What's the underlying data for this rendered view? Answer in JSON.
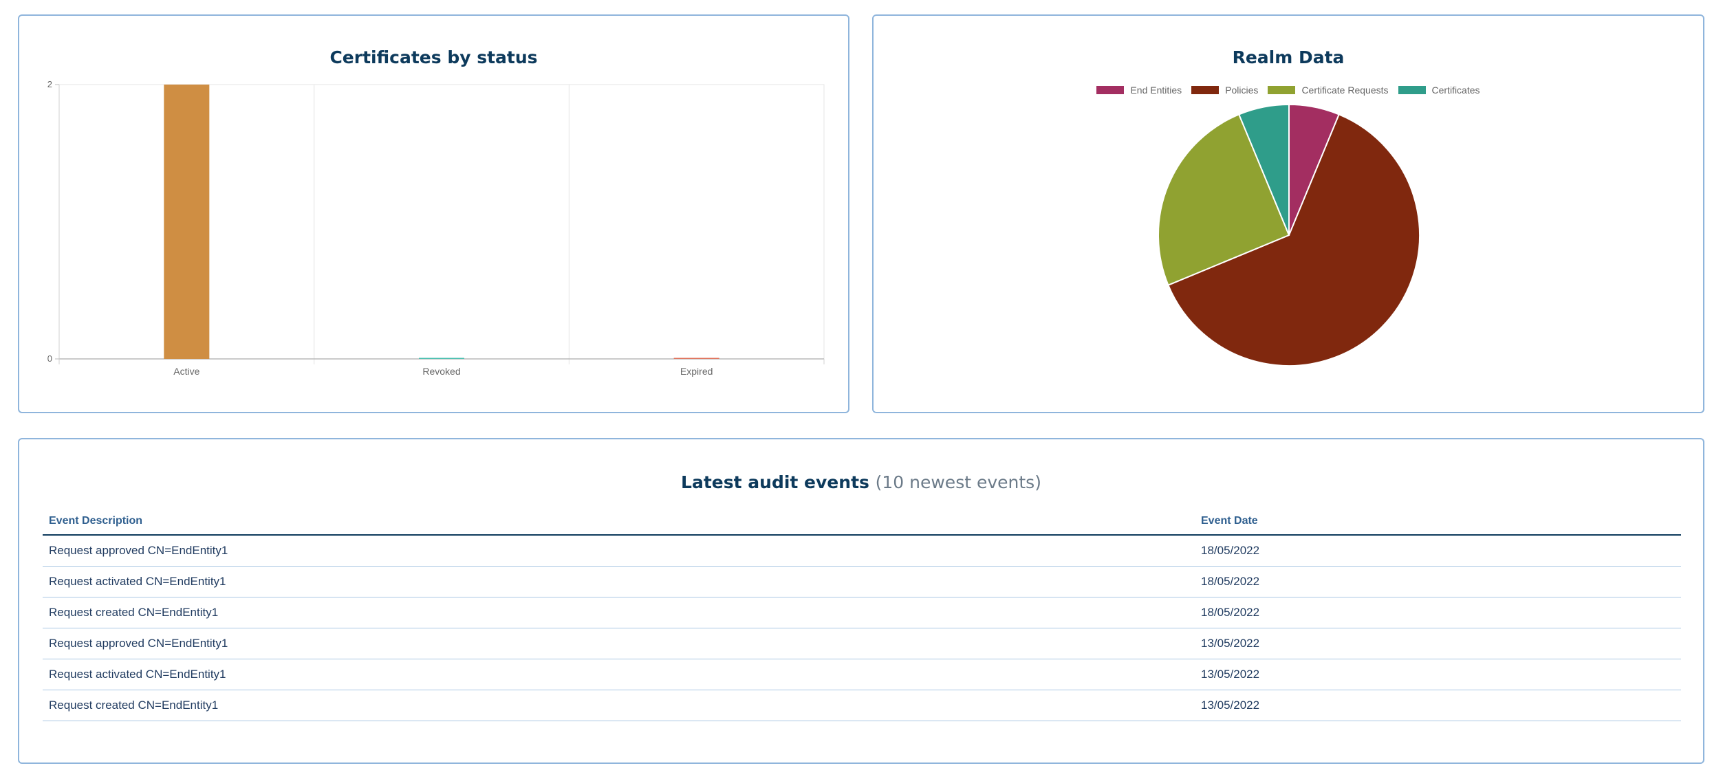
{
  "certs_panel": {
    "title": "Certificates by status"
  },
  "chart_data": [
    {
      "type": "bar",
      "title": "Certificates by status",
      "categories": [
        "Active",
        "Revoked",
        "Expired"
      ],
      "values": [
        2,
        0,
        0
      ],
      "colors": [
        "#cf8e43",
        "#4bbfb0",
        "#e0735c"
      ],
      "ylim": [
        0,
        2
      ],
      "yticks": [
        "2",
        "0"
      ],
      "grid": true
    },
    {
      "type": "pie",
      "title": "Realm Data",
      "labels": [
        "End Entities",
        "Policies",
        "Certificate Requests",
        "Certificates"
      ],
      "values": [
        1,
        10,
        4,
        1
      ],
      "colors": [
        "#a32e61",
        "#80280e",
        "#90a231",
        "#2f9d8a"
      ],
      "legend": "top"
    }
  ],
  "realm_panel": {
    "title": "Realm Data",
    "legend": [
      "End Entities",
      "Policies",
      "Certificate Requests",
      "Certificates"
    ]
  },
  "audit": {
    "title": "Latest audit events",
    "subtitle": "(10 newest events)",
    "columns": [
      "Event Description",
      "Event Date"
    ],
    "rows": [
      {
        "description": "Request approved CN=EndEntity1",
        "date": "18/05/2022"
      },
      {
        "description": "Request activated CN=EndEntity1",
        "date": "18/05/2022"
      },
      {
        "description": "Request created CN=EndEntity1",
        "date": "18/05/2022"
      },
      {
        "description": "Request approved CN=EndEntity1",
        "date": "13/05/2022"
      },
      {
        "description": "Request activated CN=EndEntity1",
        "date": "13/05/2022"
      },
      {
        "description": "Request created CN=EndEntity1",
        "date": "13/05/2022"
      }
    ]
  }
}
